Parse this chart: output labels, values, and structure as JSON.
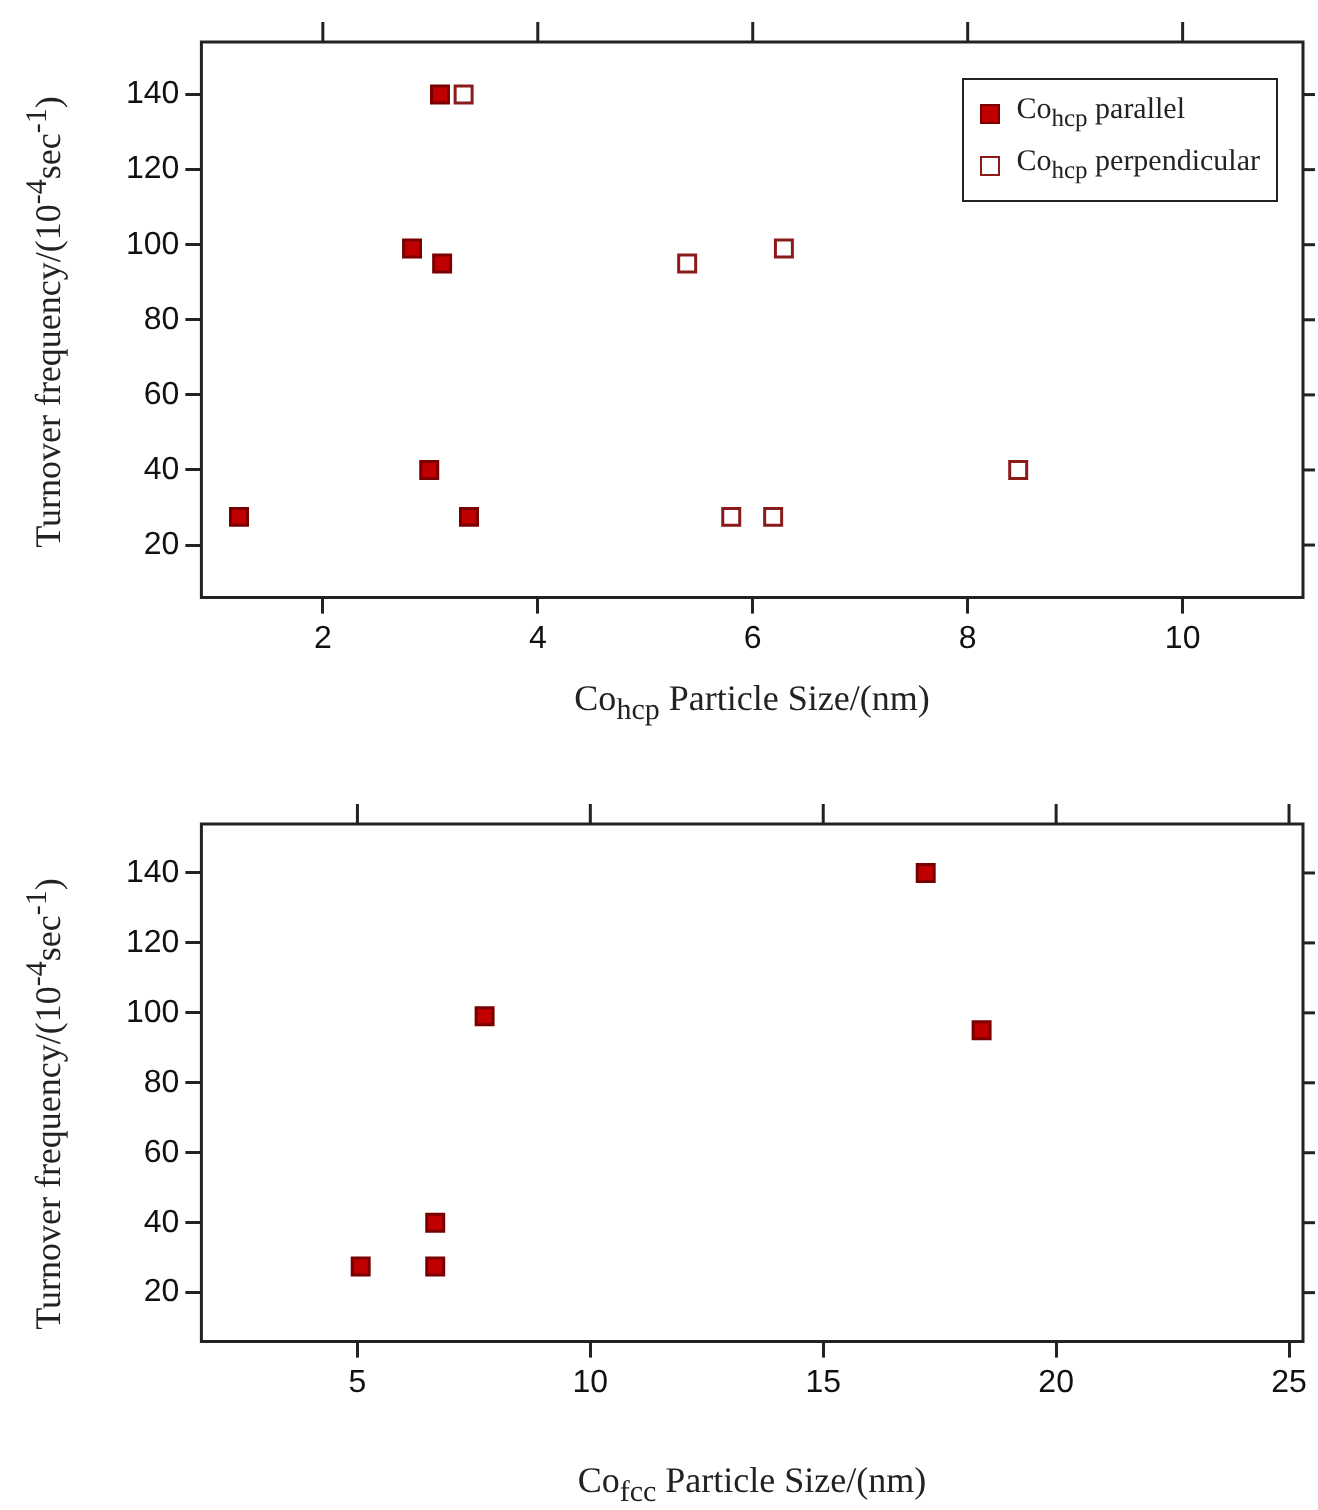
{
  "chart_data": [
    {
      "type": "scatter",
      "xlabel": "Co$_{hcp}$ Particle Size/(nm)",
      "ylabel": "Turnover frequency/(10$^{-4}$sec$^{-1}$)",
      "xlim": [
        0.87,
        11.12
      ],
      "ylim": [
        6,
        154
      ],
      "xticks": [
        2,
        4,
        6,
        8,
        10
      ],
      "yticks": [
        20,
        40,
        60,
        80,
        100,
        120,
        140
      ],
      "grid": false,
      "legend": "top right",
      "marker": "square",
      "series": [
        {
          "name": "Co$_{hcp}$ parallel",
          "color": "#c00000",
          "x": [
            1.22,
            2.83,
            2.99,
            3.09,
            3.11,
            3.36
          ],
          "values": [
            27.5,
            99,
            40,
            140,
            95,
            27.5
          ]
        },
        {
          "name": "Co$_{hcp}$ perpendicular",
          "color": "#8b1a1a",
          "x": [
            3.31,
            5.39,
            6.29,
            5.8,
            6.19,
            8.47
          ],
          "values": [
            140,
            95,
            99,
            27.5,
            27.5,
            40
          ]
        }
      ]
    },
    {
      "type": "scatter",
      "xlabel": "Co$_{fcc}$ Particle Size/(nm)",
      "ylabel": "Turnover frequency/(10$^{-4}$sec$^{-1}$)",
      "xlim": [
        1.65,
        25.3
      ],
      "ylim": [
        6,
        154
      ],
      "xticks": [
        5,
        10,
        15,
        20,
        25
      ],
      "yticks": [
        20,
        40,
        60,
        80,
        100,
        120,
        140
      ],
      "grid": false,
      "legend": false,
      "marker": "square",
      "series": [
        {
          "color": "#c00000",
          "x": [
            5.07,
            6.67,
            6.67,
            7.73,
            17.2,
            18.4
          ],
          "values": [
            27.5,
            27.5,
            40,
            99,
            140,
            95
          ]
        }
      ]
    }
  ]
}
